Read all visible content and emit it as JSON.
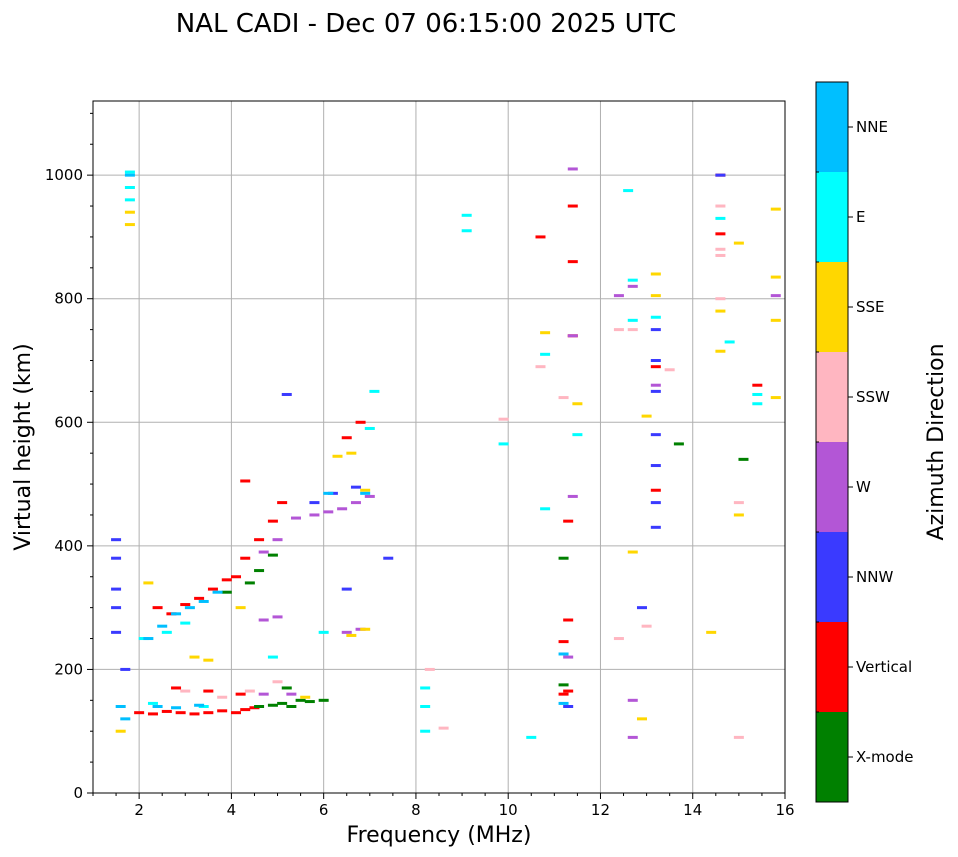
{
  "chart_data": {
    "type": "scatter",
    "title": "NAL CADI - Dec 07 06:15:00 2025 UTC",
    "xlabel": "Frequency (MHz)",
    "ylabel": "Virtual height (km)",
    "xlim": [
      1,
      16
    ],
    "ylim": [
      0,
      1120
    ],
    "xticks": [
      2,
      4,
      6,
      8,
      10,
      12,
      14,
      16
    ],
    "yticks": [
      0,
      200,
      400,
      600,
      800,
      1000
    ],
    "grid": true,
    "colorbar": {
      "label": "Azimuth Direction",
      "categories": [
        {
          "name": "X-mode",
          "color": "#008000"
        },
        {
          "name": "Vertical",
          "color": "#ff0000"
        },
        {
          "name": "NNW",
          "color": "#3a3aff"
        },
        {
          "name": "W",
          "color": "#b356d6"
        },
        {
          "name": "SSW",
          "color": "#ffb6c1"
        },
        {
          "name": "SSE",
          "color": "#ffd700"
        },
        {
          "name": "E",
          "color": "#00ffff"
        },
        {
          "name": "NNE",
          "color": "#00bfff"
        }
      ]
    },
    "series": [
      {
        "name": "Vertical",
        "color": "#ff0000",
        "points": [
          [
            2.0,
            130
          ],
          [
            2.3,
            128
          ],
          [
            2.6,
            132
          ],
          [
            2.9,
            130
          ],
          [
            3.2,
            128
          ],
          [
            3.5,
            130
          ],
          [
            3.8,
            133
          ],
          [
            4.1,
            130
          ],
          [
            4.3,
            135
          ],
          [
            4.5,
            138
          ],
          [
            2.8,
            170
          ],
          [
            3.5,
            165
          ],
          [
            4.2,
            160
          ],
          [
            2.4,
            300
          ],
          [
            2.7,
            290
          ],
          [
            3.0,
            305
          ],
          [
            3.3,
            315
          ],
          [
            3.6,
            330
          ],
          [
            3.9,
            345
          ],
          [
            4.1,
            350
          ],
          [
            4.3,
            380
          ],
          [
            4.6,
            410
          ],
          [
            4.9,
            440
          ],
          [
            4.3,
            505
          ],
          [
            5.1,
            470
          ],
          [
            6.5,
            575
          ],
          [
            6.8,
            600
          ],
          [
            11.2,
            160
          ],
          [
            11.3,
            165
          ],
          [
            11.2,
            245
          ],
          [
            11.3,
            280
          ],
          [
            11.3,
            440
          ],
          [
            11.4,
            740
          ],
          [
            11.4,
            860
          ],
          [
            11.4,
            950
          ],
          [
            10.7,
            900
          ],
          [
            13.2,
            690
          ],
          [
            13.2,
            490
          ],
          [
            15.4,
            660
          ],
          [
            14.6,
            1000
          ],
          [
            14.6,
            905
          ]
        ]
      },
      {
        "name": "X-mode",
        "color": "#008000",
        "points": [
          [
            4.6,
            140
          ],
          [
            4.9,
            142
          ],
          [
            5.1,
            145
          ],
          [
            5.3,
            140
          ],
          [
            5.5,
            150
          ],
          [
            5.7,
            148
          ],
          [
            6.0,
            150
          ],
          [
            5.2,
            170
          ],
          [
            4.6,
            360
          ],
          [
            4.9,
            385
          ],
          [
            4.4,
            340
          ],
          [
            3.9,
            325
          ],
          [
            15.1,
            540
          ],
          [
            13.7,
            565
          ],
          [
            11.2,
            380
          ],
          [
            11.2,
            175
          ]
        ]
      },
      {
        "name": "NNW",
        "color": "#3a3aff",
        "points": [
          [
            1.5,
            410
          ],
          [
            1.5,
            380
          ],
          [
            1.5,
            330
          ],
          [
            1.5,
            300
          ],
          [
            1.5,
            260
          ],
          [
            1.7,
            200
          ],
          [
            6.2,
            485
          ],
          [
            6.7,
            495
          ],
          [
            5.8,
            470
          ],
          [
            6.5,
            330
          ],
          [
            7.4,
            380
          ],
          [
            13.2,
            580
          ],
          [
            13.2,
            530
          ],
          [
            13.2,
            470
          ],
          [
            13.2,
            430
          ],
          [
            13.2,
            750
          ],
          [
            13.2,
            700
          ],
          [
            13.2,
            650
          ],
          [
            12.9,
            300
          ],
          [
            14.6,
            1000
          ],
          [
            5.2,
            645
          ],
          [
            11.3,
            140
          ]
        ]
      },
      {
        "name": "W",
        "color": "#b356d6",
        "points": [
          [
            4.7,
            160
          ],
          [
            5.3,
            160
          ],
          [
            4.7,
            280
          ],
          [
            5.0,
            285
          ],
          [
            5.4,
            445
          ],
          [
            5.8,
            450
          ],
          [
            6.1,
            455
          ],
          [
            6.4,
            460
          ],
          [
            6.7,
            470
          ],
          [
            7.0,
            480
          ],
          [
            5.0,
            410
          ],
          [
            4.7,
            390
          ],
          [
            6.5,
            260
          ],
          [
            6.8,
            265
          ],
          [
            11.4,
            1010
          ],
          [
            11.4,
            740
          ],
          [
            11.4,
            480
          ],
          [
            12.7,
            150
          ],
          [
            12.7,
            90
          ],
          [
            12.7,
            820
          ],
          [
            12.4,
            805
          ],
          [
            13.2,
            660
          ],
          [
            15.8,
            805
          ],
          [
            11.3,
            220
          ]
        ]
      },
      {
        "name": "SSW",
        "color": "#ffb6c1",
        "points": [
          [
            3.0,
            165
          ],
          [
            3.8,
            155
          ],
          [
            4.4,
            165
          ],
          [
            5.0,
            180
          ],
          [
            8.6,
            105
          ],
          [
            8.3,
            200
          ],
          [
            9.9,
            605
          ],
          [
            10.7,
            690
          ],
          [
            12.4,
            750
          ],
          [
            12.4,
            250
          ],
          [
            12.7,
            750
          ],
          [
            13.0,
            270
          ],
          [
            13.5,
            685
          ],
          [
            14.6,
            950
          ],
          [
            14.6,
            880
          ],
          [
            14.6,
            870
          ],
          [
            14.6,
            800
          ],
          [
            15.0,
            470
          ],
          [
            15.0,
            90
          ],
          [
            11.2,
            640
          ]
        ]
      },
      {
        "name": "SSE",
        "color": "#ffd700",
        "points": [
          [
            1.8,
            940
          ],
          [
            1.8,
            920
          ],
          [
            1.6,
            100
          ],
          [
            2.2,
            340
          ],
          [
            3.2,
            220
          ],
          [
            3.5,
            215
          ],
          [
            4.2,
            300
          ],
          [
            5.6,
            155
          ],
          [
            6.6,
            255
          ],
          [
            6.9,
            265
          ],
          [
            6.3,
            545
          ],
          [
            6.6,
            550
          ],
          [
            6.9,
            490
          ],
          [
            12.7,
            390
          ],
          [
            12.9,
            120
          ],
          [
            13.2,
            840
          ],
          [
            13.2,
            805
          ],
          [
            13.0,
            610
          ],
          [
            14.4,
            260
          ],
          [
            14.6,
            780
          ],
          [
            14.6,
            715
          ],
          [
            15.0,
            890
          ],
          [
            15.0,
            450
          ],
          [
            15.8,
            945
          ],
          [
            15.8,
            835
          ],
          [
            15.8,
            765
          ],
          [
            15.8,
            640
          ],
          [
            11.5,
            630
          ],
          [
            10.8,
            745
          ]
        ]
      },
      {
        "name": "E",
        "color": "#00ffff",
        "points": [
          [
            1.8,
            1005
          ],
          [
            1.8,
            980
          ],
          [
            1.8,
            960
          ],
          [
            2.1,
            250
          ],
          [
            2.6,
            260
          ],
          [
            3.0,
            275
          ],
          [
            2.3,
            145
          ],
          [
            3.4,
            140
          ],
          [
            4.9,
            220
          ],
          [
            6.0,
            260
          ],
          [
            7.1,
            650
          ],
          [
            7.0,
            590
          ],
          [
            8.2,
            100
          ],
          [
            8.2,
            140
          ],
          [
            8.2,
            170
          ],
          [
            9.1,
            935
          ],
          [
            9.1,
            910
          ],
          [
            9.9,
            565
          ],
          [
            10.8,
            460
          ],
          [
            10.8,
            710
          ],
          [
            10.5,
            90
          ],
          [
            11.5,
            580
          ],
          [
            12.6,
            975
          ],
          [
            12.7,
            830
          ],
          [
            12.7,
            765
          ],
          [
            13.2,
            770
          ],
          [
            14.8,
            730
          ],
          [
            15.4,
            645
          ],
          [
            15.4,
            630
          ],
          [
            14.6,
            930
          ]
        ]
      },
      {
        "name": "NNE",
        "color": "#00bfff",
        "points": [
          [
            1.8,
            1000
          ],
          [
            1.6,
            140
          ],
          [
            1.7,
            120
          ],
          [
            2.2,
            250
          ],
          [
            2.5,
            270
          ],
          [
            2.8,
            290
          ],
          [
            3.1,
            300
          ],
          [
            3.4,
            310
          ],
          [
            3.7,
            325
          ],
          [
            2.4,
            140
          ],
          [
            2.8,
            138
          ],
          [
            3.3,
            142
          ],
          [
            6.9,
            485
          ],
          [
            6.1,
            485
          ],
          [
            11.2,
            225
          ],
          [
            11.2,
            145
          ]
        ]
      }
    ]
  }
}
